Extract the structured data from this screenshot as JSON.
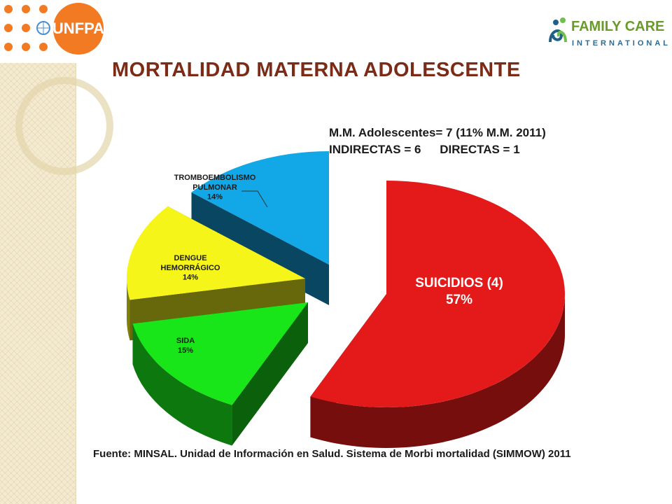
{
  "header": {
    "unfpa_logo_text": "UNFPA",
    "fci_logo_line1": "FAMILY CARE",
    "fci_logo_line2": "INTERNATIONAL"
  },
  "title": "MORTALIDAD MATERNA ADOLESCENTE",
  "summary": {
    "line1": "M.M. Adolescentes= 7 (11% M.M. 2011)",
    "indirect": "INDIRECTAS = 6",
    "direct": "DIRECTAS = 1"
  },
  "chart_data": {
    "type": "pie",
    "style": "3d-exploded",
    "slices": [
      {
        "label": "SUICIDIOS (4)",
        "value": 57,
        "value_label": "57%",
        "color": "#e41a1a"
      },
      {
        "label": "SIDA",
        "value": 15,
        "value_label": "15%",
        "color": "#19e619"
      },
      {
        "label": "DENGUE HEMORRÁGICO",
        "value": 14,
        "value_label": "14%",
        "color": "#f5f51a"
      },
      {
        "label": "TROMBOEMBOLISMO PULMONAR",
        "value": 14,
        "value_label": "14%",
        "color": "#12a7e6"
      }
    ]
  },
  "source": "Fuente: MINSAL. Unidad de Información en Salud. Sistema de Morbi mortalidad (SIMMOW) 2011"
}
